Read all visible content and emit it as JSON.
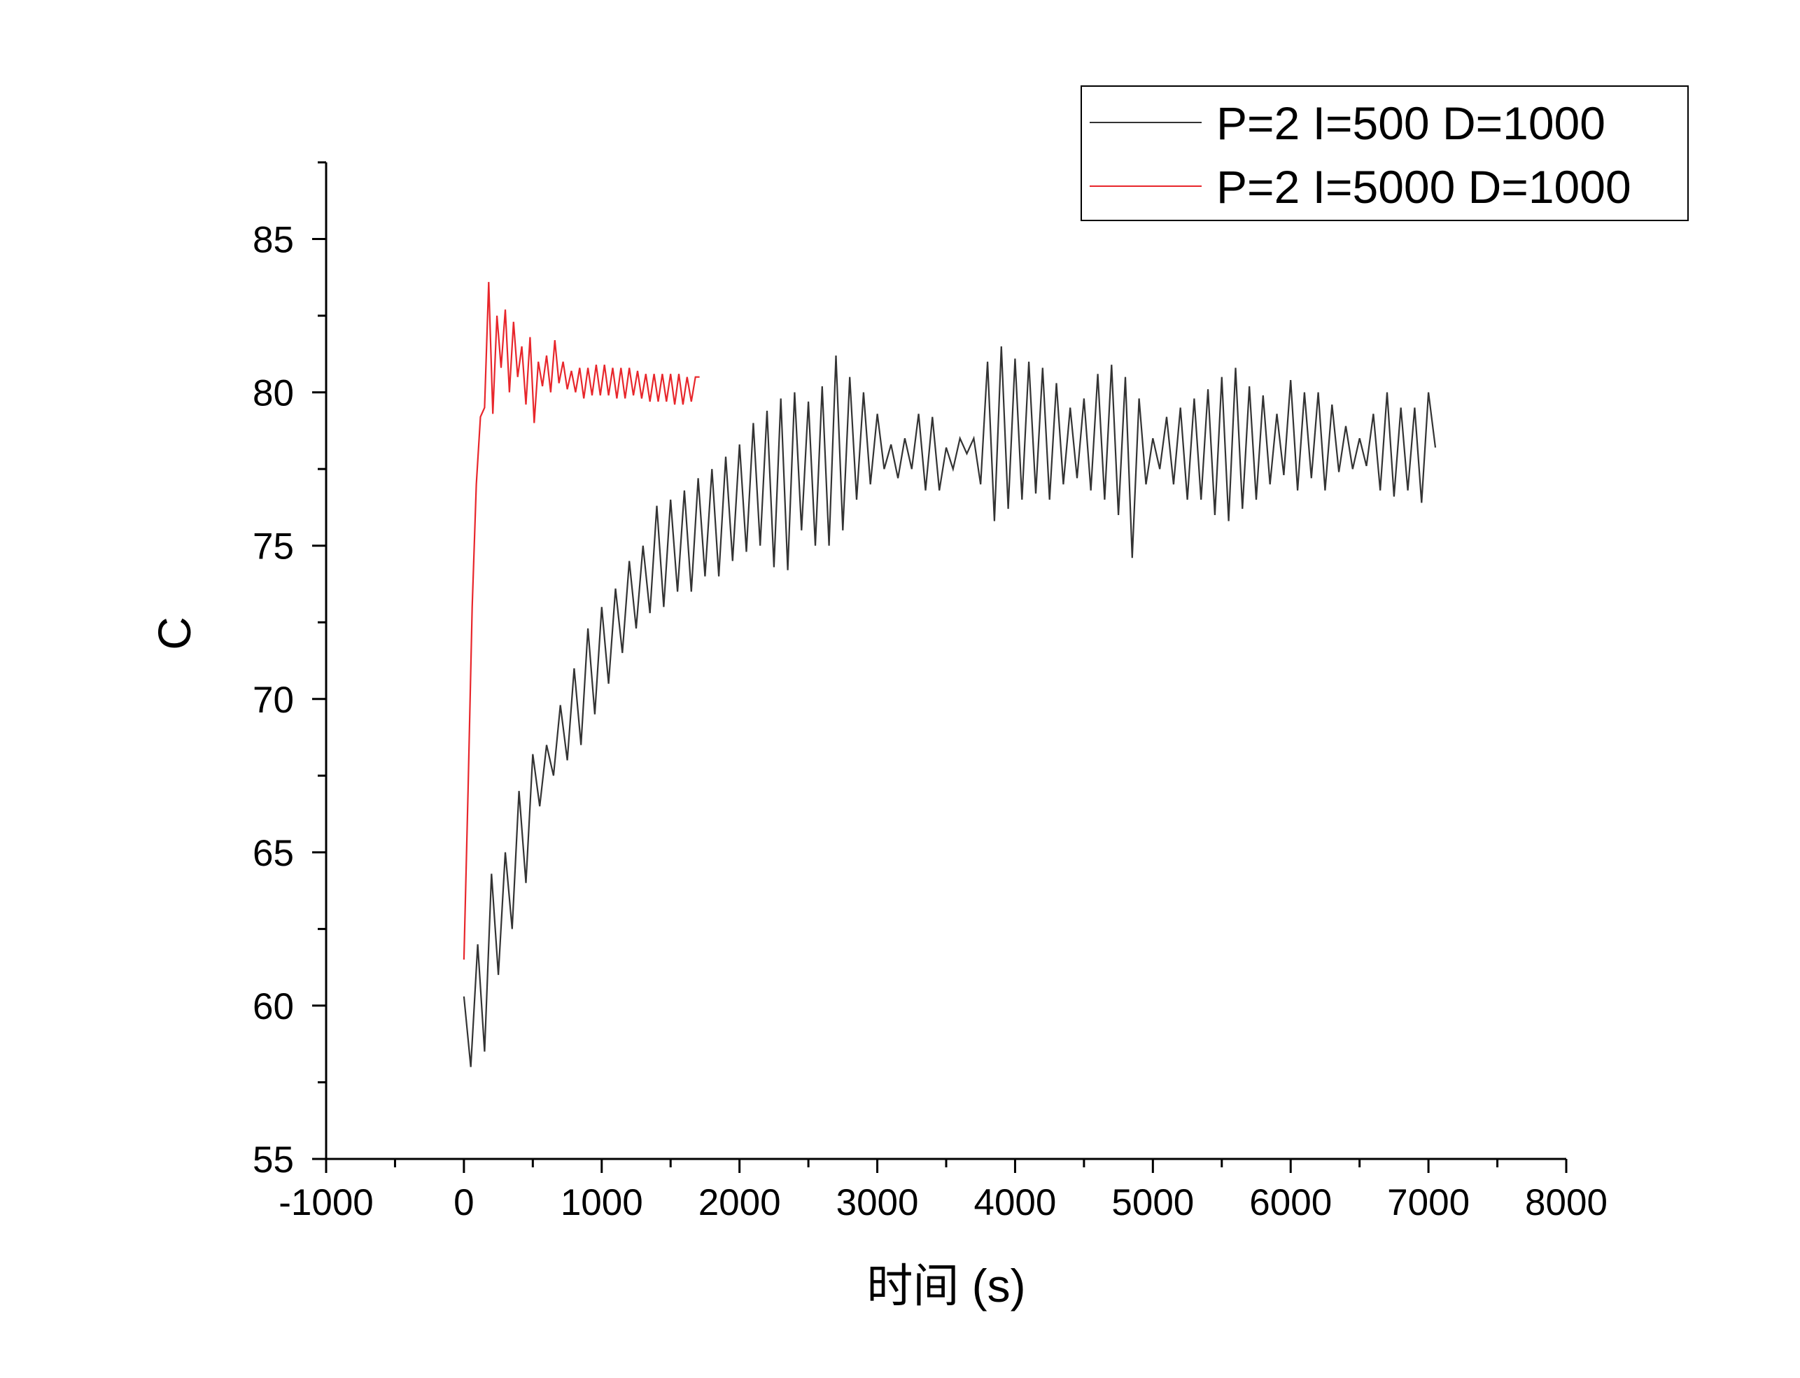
{
  "chart_data": {
    "type": "line",
    "xlabel": "时间 (s)",
    "ylabel": "C",
    "xlim": [
      -1000,
      8000
    ],
    "xticks": [
      -1000,
      0,
      1000,
      2000,
      3000,
      4000,
      5000,
      6000,
      7000,
      8000
    ],
    "x_minor_ticks": [
      -500,
      500,
      1500,
      2500,
      3500,
      4500,
      5500,
      6500,
      7500
    ],
    "ylim": [
      55,
      87.5
    ],
    "yticks": [
      55,
      60,
      65,
      70,
      75,
      80,
      85
    ],
    "y_minor_ticks": [
      57.5,
      62.5,
      67.5,
      72.5,
      77.5,
      82.5,
      87.5
    ],
    "legend": "top-right",
    "series": [
      {
        "name": "P=2 I=500 D=1000",
        "color": "#333333",
        "x": [
          0,
          50,
          100,
          150,
          200,
          250,
          300,
          350,
          400,
          450,
          500,
          550,
          600,
          650,
          700,
          750,
          800,
          850,
          900,
          950,
          1000,
          1050,
          1100,
          1150,
          1200,
          1250,
          1300,
          1350,
          1400,
          1450,
          1500,
          1550,
          1600,
          1650,
          1700,
          1750,
          1800,
          1850,
          1900,
          1950,
          2000,
          2050,
          2100,
          2150,
          2200,
          2250,
          2300,
          2350,
          2400,
          2450,
          2500,
          2550,
          2600,
          2650,
          2700,
          2750,
          2800,
          2850,
          2900,
          2950,
          3000,
          3050,
          3100,
          3150,
          3200,
          3250,
          3300,
          3350,
          3400,
          3450,
          3500,
          3550,
          3600,
          3650,
          3700,
          3750,
          3800,
          3850,
          3900,
          3950,
          4000,
          4050,
          4100,
          4150,
          4200,
          4250,
          4300,
          4350,
          4400,
          4450,
          4500,
          4550,
          4600,
          4650,
          4700,
          4750,
          4800,
          4850,
          4900,
          4950,
          5000,
          5050,
          5100,
          5150,
          5200,
          5250,
          5300,
          5350,
          5400,
          5450,
          5500,
          5550,
          5600,
          5650,
          5700,
          5750,
          5800,
          5850,
          5900,
          5950,
          6000,
          6050,
          6100,
          6150,
          6200,
          6250,
          6300,
          6350,
          6400,
          6450,
          6500,
          6550,
          6600,
          6650,
          6700,
          6750,
          6800,
          6850,
          6900,
          6950,
          7000,
          7050
        ],
        "values": [
          60.3,
          58,
          62,
          58.5,
          64.3,
          61,
          65,
          62.5,
          67,
          64,
          68.2,
          66.5,
          68.5,
          67.5,
          69.8,
          68,
          71,
          68.5,
          72.3,
          69.5,
          73,
          70.5,
          73.6,
          71.5,
          74.5,
          72.3,
          75,
          72.8,
          76.3,
          73,
          76.5,
          73.5,
          76.8,
          73.5,
          77.2,
          74,
          77.5,
          74,
          77.9,
          74.5,
          78.3,
          74.8,
          79,
          75,
          79.4,
          74.3,
          79.8,
          74.2,
          80,
          75.5,
          79.7,
          75,
          80.2,
          75,
          81.2,
          75.5,
          80.5,
          76.5,
          80,
          77,
          79.3,
          77.5,
          78.3,
          77.2,
          78.5,
          77.5,
          79.3,
          76.8,
          79.2,
          76.8,
          78.2,
          77.5,
          78.5,
          78,
          78.5,
          77,
          81,
          75.8,
          81.5,
          76.2,
          81.1,
          76.5,
          81,
          76.7,
          80.8,
          76.5,
          80.3,
          77,
          79.5,
          77.2,
          79.8,
          76.8,
          80.6,
          76.5,
          80.9,
          76,
          80.5,
          74.6,
          79.8,
          77,
          78.5,
          77.5,
          79.2,
          77,
          79.5,
          76.5,
          79.8,
          76.5,
          80.1,
          76,
          80.5,
          75.8,
          80.8,
          76.2,
          80.2,
          76.5,
          79.9,
          77,
          79.3,
          77.3,
          80.4,
          76.8,
          80,
          77.2,
          80,
          76.8,
          79.6,
          77.4,
          78.9,
          77.5,
          78.5,
          77.6,
          79.3,
          76.8,
          80,
          76.6,
          79.5,
          76.8,
          79.5,
          76.4,
          80,
          78.2
        ]
      },
      {
        "name": "P=2 I=5000 D=1000",
        "color": "#e8262b",
        "x": [
          0,
          30,
          60,
          90,
          120,
          150,
          180,
          210,
          240,
          270,
          300,
          330,
          360,
          390,
          420,
          450,
          480,
          510,
          540,
          570,
          600,
          630,
          660,
          690,
          720,
          750,
          780,
          810,
          840,
          870,
          900,
          930,
          960,
          990,
          1020,
          1050,
          1080,
          1110,
          1140,
          1170,
          1200,
          1230,
          1260,
          1290,
          1320,
          1350,
          1380,
          1410,
          1440,
          1470,
          1500,
          1530,
          1560,
          1590,
          1620,
          1650,
          1680,
          1710
        ],
        "values": [
          61.5,
          67,
          73,
          77,
          79.2,
          79.5,
          83.6,
          79.3,
          82.5,
          80.8,
          82.7,
          80,
          82.3,
          80.5,
          81.5,
          79.6,
          81.8,
          79,
          81,
          80.2,
          81.2,
          80,
          81.7,
          80.3,
          81,
          80.1,
          80.7,
          80,
          80.8,
          79.8,
          80.8,
          79.9,
          80.9,
          79.9,
          80.9,
          79.9,
          80.8,
          79.8,
          80.8,
          79.8,
          80.8,
          79.9,
          80.7,
          79.8,
          80.6,
          79.7,
          80.6,
          79.7,
          80.6,
          79.7,
          80.6,
          79.6,
          80.6,
          79.6,
          80.5,
          79.7,
          80.5,
          80.5
        ]
      }
    ]
  }
}
